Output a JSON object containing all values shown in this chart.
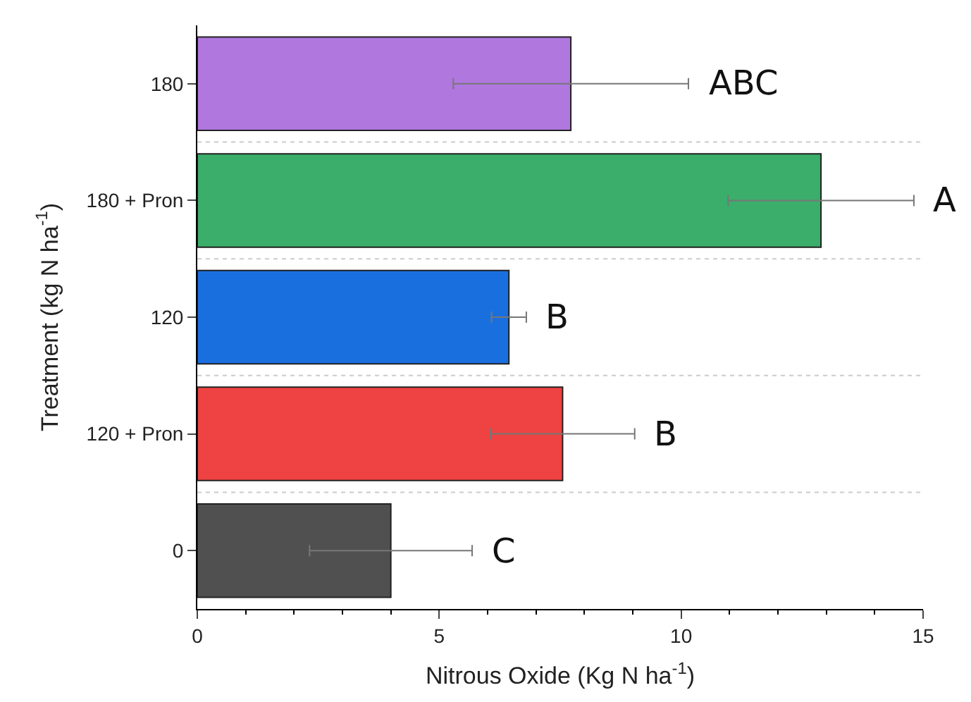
{
  "chart_data": {
    "type": "bar",
    "orientation": "horizontal",
    "xlabel": "Nitrous Oxide (Kg N ha$^{-1}$)",
    "ylabel": "Treatment (kg N ha$^{-1}$)",
    "categories": [
      "180",
      "180 + Pron",
      "120",
      "120 + Pron",
      "0"
    ],
    "values": [
      7.72,
      12.89,
      6.44,
      7.55,
      4.0
    ],
    "errors": [
      2.43,
      1.92,
      0.36,
      1.49,
      1.68
    ],
    "colors": [
      "#b077de",
      "#3aae6a",
      "#1a6fdf",
      "#ef4242",
      "#505050"
    ],
    "xlim": [
      0,
      15
    ],
    "xticks": [
      0,
      5,
      10,
      15
    ],
    "grid": "y",
    "annotations": [
      "ABC",
      "A",
      "B",
      "B",
      "C"
    ]
  }
}
